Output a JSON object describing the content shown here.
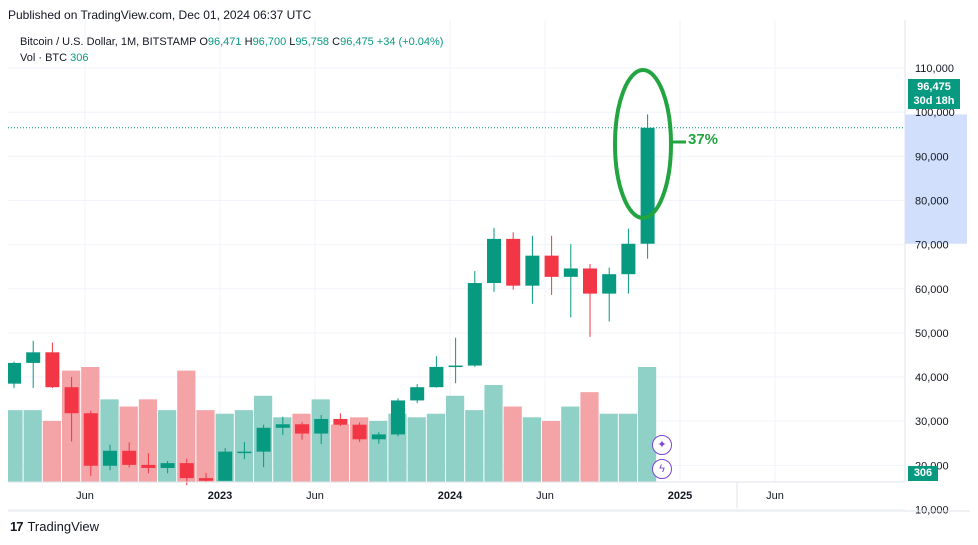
{
  "publish_line": "Published on TradingView.com, Dec 01, 2024 06:37 UTC",
  "legend": {
    "symbol": "Bitcoin / U.S. Dollar, 1M, BITSTAMP",
    "o_label": "O",
    "o_value": "96,471",
    "h_label": "H",
    "h_value": "96,700",
    "l_label": "L",
    "l_value": "95,758",
    "c_label": "C",
    "c_value": "96,475",
    "change": "+34 (+0.04%)",
    "vol_label": "Vol · BTC",
    "vol_value": "306"
  },
  "price_tag": {
    "price": "96,475",
    "countdown": "30d 18h"
  },
  "volume_tag": "306",
  "annotation": {
    "text": "37%",
    "color": "#22a541"
  },
  "footer": {
    "logo_mark": "17",
    "brand": "TradingView"
  },
  "icons": {
    "star_button": "sparkle-icon",
    "flash_button": "lightning-icon"
  },
  "colors": {
    "up": "#089981",
    "down": "#f23645",
    "vol_up": "#8fd0c7",
    "vol_down": "#f4a3a6",
    "highlight": "#c9d8fb"
  },
  "chart_data": {
    "type": "candlestick",
    "interval": "1M",
    "y_axis_ticks": [
      "110,000",
      "100,000",
      "90,000",
      "80,000",
      "70,000",
      "60,000",
      "50,000",
      "40,000",
      "30,000",
      "20,000",
      "10,000"
    ],
    "x_axis_labels": [
      "Jun",
      "2023",
      "Jun",
      "2024",
      "Jun",
      "2025",
      "Jun"
    ],
    "ylim": [
      10000,
      110000
    ],
    "candles": [
      {
        "o": 38500,
        "h": 43500,
        "l": 37500,
        "c": 43200
      },
      {
        "o": 43200,
        "h": 48200,
        "l": 37500,
        "c": 45600
      },
      {
        "o": 45600,
        "h": 47800,
        "l": 37500,
        "c": 37700
      },
      {
        "o": 37700,
        "h": 40000,
        "l": 25400,
        "c": 31800
      },
      {
        "o": 31800,
        "h": 32400,
        "l": 17600,
        "c": 19900
      },
      {
        "o": 19900,
        "h": 24700,
        "l": 18900,
        "c": 23300
      },
      {
        "o": 23300,
        "h": 25200,
        "l": 19500,
        "c": 20100
      },
      {
        "o": 20100,
        "h": 22700,
        "l": 18200,
        "c": 19400
      },
      {
        "o": 19400,
        "h": 21000,
        "l": 18200,
        "c": 20500
      },
      {
        "o": 20500,
        "h": 21500,
        "l": 15500,
        "c": 17100
      },
      {
        "o": 17100,
        "h": 18300,
        "l": 16300,
        "c": 16500
      },
      {
        "o": 16500,
        "h": 23900,
        "l": 16500,
        "c": 23100
      },
      {
        "o": 23100,
        "h": 25300,
        "l": 21400,
        "c": 23100
      },
      {
        "o": 23100,
        "h": 29200,
        "l": 19600,
        "c": 28500
      },
      {
        "o": 28500,
        "h": 31000,
        "l": 26900,
        "c": 29300
      },
      {
        "o": 29300,
        "h": 29800,
        "l": 25800,
        "c": 27200
      },
      {
        "o": 27200,
        "h": 31400,
        "l": 24800,
        "c": 30500
      },
      {
        "o": 30500,
        "h": 31800,
        "l": 28900,
        "c": 29200
      },
      {
        "o": 29200,
        "h": 29700,
        "l": 25300,
        "c": 25900
      },
      {
        "o": 25900,
        "h": 27500,
        "l": 24900,
        "c": 27000
      },
      {
        "o": 27000,
        "h": 35200,
        "l": 26600,
        "c": 34700
      },
      {
        "o": 34700,
        "h": 38400,
        "l": 34100,
        "c": 37700
      },
      {
        "o": 37700,
        "h": 44700,
        "l": 37600,
        "c": 42300
      },
      {
        "o": 42300,
        "h": 48900,
        "l": 38600,
        "c": 42600
      },
      {
        "o": 42600,
        "h": 64000,
        "l": 42300,
        "c": 61300
      },
      {
        "o": 61300,
        "h": 73800,
        "l": 59300,
        "c": 71300
      },
      {
        "o": 71300,
        "h": 72800,
        "l": 59800,
        "c": 60700
      },
      {
        "o": 60700,
        "h": 72000,
        "l": 56600,
        "c": 67500
      },
      {
        "o": 67500,
        "h": 72000,
        "l": 58600,
        "c": 62700
      },
      {
        "o": 62700,
        "h": 70100,
        "l": 53500,
        "c": 64600
      },
      {
        "o": 64600,
        "h": 65600,
        "l": 49100,
        "c": 58900
      },
      {
        "o": 58900,
        "h": 64800,
        "l": 52600,
        "c": 63300
      },
      {
        "o": 63300,
        "h": 73600,
        "l": 58900,
        "c": 70200
      },
      {
        "o": 70200,
        "h": 99500,
        "l": 66800,
        "c": 96475
      }
    ],
    "volume_relative": [
      20,
      20,
      17,
      31,
      32,
      23,
      21,
      23,
      20,
      31,
      20,
      19,
      20,
      24,
      18,
      19,
      23,
      16,
      18,
      17,
      19,
      18,
      19,
      24,
      20,
      27,
      21,
      18,
      17,
      21,
      25,
      19,
      19,
      32
    ],
    "highlight_range": [
      70200,
      99500
    ]
  }
}
